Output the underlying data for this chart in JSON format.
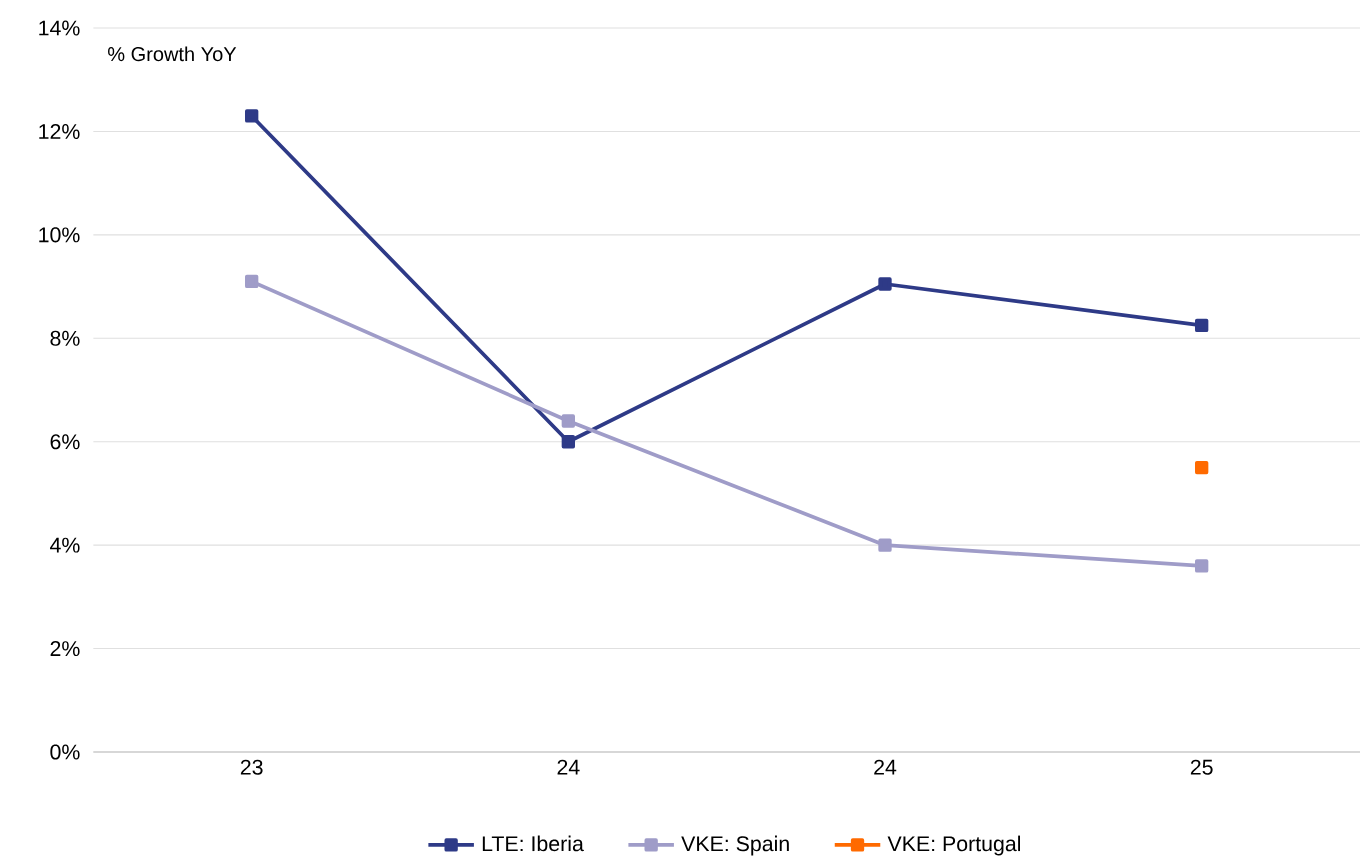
{
  "chart_data": {
    "type": "line",
    "ylabel": "% Growth YoY",
    "categories": [
      "23",
      "24",
      "24",
      "25"
    ],
    "series": [
      {
        "name": "LTE: Iberia",
        "color": "#2e3a87",
        "values": [
          12.3,
          6.0,
          9.05,
          8.25
        ]
      },
      {
        "name": "VKE: Spain",
        "color": "#9f9cc8",
        "values": [
          9.1,
          6.4,
          4.0,
          3.6
        ]
      },
      {
        "name": "VKE: Portugal",
        "color": "#ff6a00",
        "values": [
          null,
          null,
          null,
          5.5
        ]
      }
    ],
    "ylim": [
      0,
      14
    ],
    "yticks": [
      {
        "value": 0,
        "label": "0%"
      },
      {
        "value": 2,
        "label": "2%"
      },
      {
        "value": 4,
        "label": "4%"
      },
      {
        "value": 6,
        "label": "6%"
      },
      {
        "value": 8,
        "label": "8%"
      },
      {
        "value": 10,
        "label": "10%"
      },
      {
        "value": 12,
        "label": "12%"
      },
      {
        "value": 14,
        "label": "14%"
      }
    ],
    "grid": "y",
    "legend": "bottom",
    "marker": "square",
    "line_style": "solid"
  }
}
